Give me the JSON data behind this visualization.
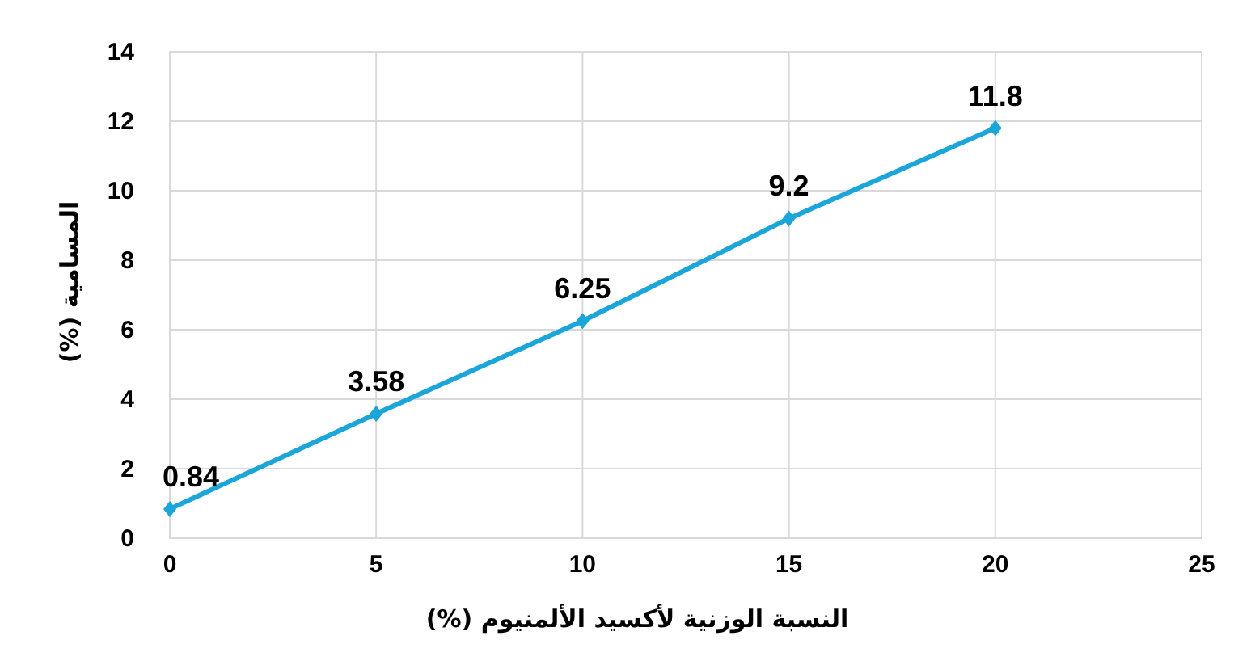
{
  "chart_data": {
    "type": "line",
    "xlabel": "النسبة الوزنية لأكسيد الألمنيوم (%)",
    "ylabel": "المسامية (%)",
    "x": [
      0,
      5,
      10,
      15,
      20
    ],
    "series": [
      {
        "color": "#1ba6d9",
        "values": [
          0.84,
          3.58,
          6.25,
          9.2,
          11.8
        ]
      }
    ],
    "xlim": [
      0,
      25
    ],
    "xticks": [
      0,
      5,
      10,
      15,
      20,
      25
    ],
    "ylim": [
      0,
      14
    ],
    "yticks": [
      0,
      2,
      4,
      6,
      8,
      10,
      12,
      14
    ],
    "grid": true,
    "marker": "diamond",
    "line_style": "solid",
    "data_labels": true
  }
}
